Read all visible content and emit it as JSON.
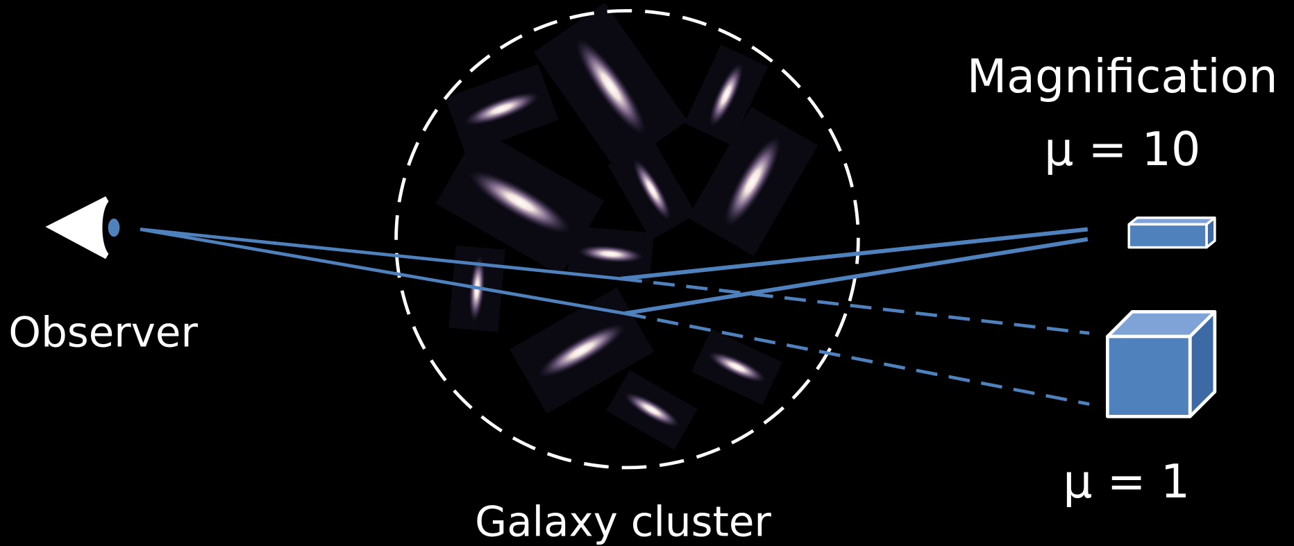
{
  "labels": {
    "observer": "Observer",
    "cluster": "Galaxy cluster",
    "magnification": "Magnification",
    "mu_high": "μ = 10",
    "mu_low": "μ = 1"
  }
}
